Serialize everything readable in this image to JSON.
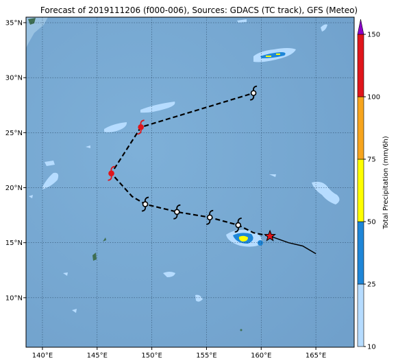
{
  "title": "Forecast of 2019111206 (f000-006), Sources: GDACS (TC track), GFS (Meteo)",
  "colorbar": {
    "label": "Total Precipitation (mm/6h)",
    "ticks": [
      "10",
      "25",
      "50",
      "75",
      "100",
      "150"
    ],
    "colors": [
      "#b6dcff",
      "#1e86d8",
      "#ffff00",
      "#f7a51d",
      "#e0151b",
      "#8a00c8"
    ]
  },
  "axes": {
    "x_ticks": [
      "140°E",
      "145°E",
      "150°E",
      "155°E",
      "160°E",
      "165°E"
    ],
    "y_ticks": [
      "10°N",
      "15°N",
      "20°N",
      "25°N",
      "30°N",
      "35°N"
    ]
  },
  "chart_data": {
    "type": "map",
    "lon_range": [
      138.5,
      168.5
    ],
    "lat_range": [
      5.5,
      35.5
    ],
    "grid": true,
    "colors": {
      "ocean": "#76a7d1",
      "track_future": "#000000",
      "track_past": "#000000",
      "current_marker": "#e0151b",
      "typhoon_symbol": "#e0151b",
      "storm_symbol": "#000000"
    },
    "past_track": [
      {
        "lon": 165.0,
        "lat": 14.0
      },
      {
        "lon": 163.8,
        "lat": 14.7
      },
      {
        "lon": 162.5,
        "lat": 15.0
      },
      {
        "lon": 160.8,
        "lat": 15.6
      }
    ],
    "forecast_track": [
      {
        "lon": 160.8,
        "lat": 15.6,
        "symbol": "star"
      },
      {
        "lon": 159.3,
        "lat": 15.9,
        "symbol": "none"
      },
      {
        "lon": 157.9,
        "lat": 16.6,
        "symbol": "storm"
      },
      {
        "lon": 155.3,
        "lat": 17.3,
        "symbol": "storm"
      },
      {
        "lon": 152.3,
        "lat": 17.8,
        "symbol": "storm"
      },
      {
        "lon": 149.4,
        "lat": 18.5,
        "symbol": "storm"
      },
      {
        "lon": 148.2,
        "lat": 19.2,
        "symbol": "none"
      },
      {
        "lon": 146.3,
        "lat": 21.3,
        "symbol": "typhoon"
      },
      {
        "lon": 149.0,
        "lat": 25.5,
        "symbol": "typhoon"
      },
      {
        "lon": 159.3,
        "lat": 28.6,
        "symbol": "storm"
      }
    ]
  }
}
